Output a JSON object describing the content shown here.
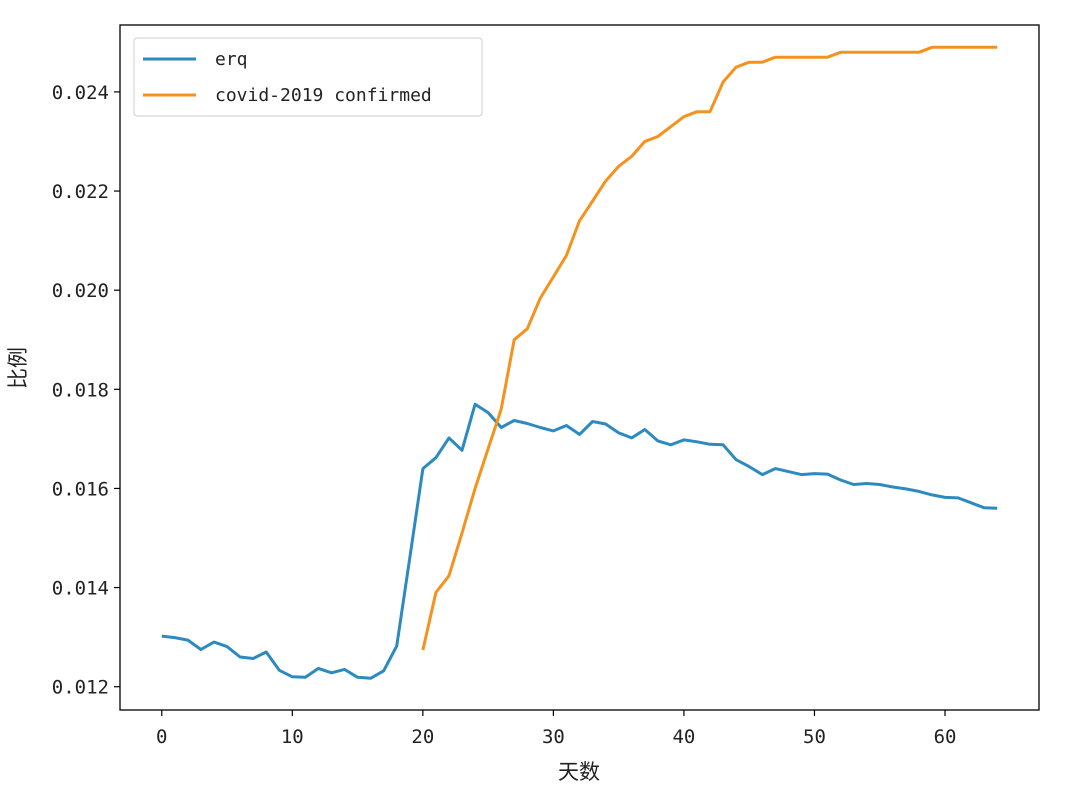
{
  "chart_data": {
    "type": "line",
    "title": "",
    "xlabel": "天数",
    "ylabel": "比例",
    "xlim": [
      -3.2,
      67.2
    ],
    "ylim": [
      0.01153,
      0.02535
    ],
    "xticks": [
      0,
      10,
      20,
      30,
      40,
      50,
      60
    ],
    "yticks": [
      0.012,
      0.014,
      0.016,
      0.018,
      0.02,
      0.022,
      0.024
    ],
    "ytick_labels": [
      "0.012",
      "0.014",
      "0.016",
      "0.018",
      "0.020",
      "0.022",
      "0.024"
    ],
    "grid": false,
    "legend_position": "top-left",
    "series": [
      {
        "name": "erq",
        "color": "#2c8ac0",
        "x": [
          0,
          1,
          2,
          3,
          4,
          5,
          6,
          7,
          8,
          9,
          10,
          11,
          12,
          13,
          14,
          15,
          16,
          17,
          18,
          19,
          20,
          21,
          22,
          23,
          24,
          25,
          26,
          27,
          28,
          29,
          30,
          31,
          32,
          33,
          34,
          35,
          36,
          37,
          38,
          39,
          40,
          41,
          42,
          43,
          44,
          45,
          46,
          47,
          48,
          49,
          50,
          51,
          52,
          53,
          54,
          55,
          56,
          57,
          58,
          59,
          60,
          61,
          62,
          63,
          64
        ],
        "y": [
          0.01302,
          0.01299,
          0.01294,
          0.01275,
          0.0129,
          0.01281,
          0.0126,
          0.01257,
          0.0127,
          0.01233,
          0.0122,
          0.01219,
          0.01237,
          0.01228,
          0.01235,
          0.01219,
          0.01217,
          0.01232,
          0.01282,
          0.0146,
          0.0164,
          0.01662,
          0.01702,
          0.01677,
          0.0177,
          0.01753,
          0.01723,
          0.01737,
          0.01731,
          0.01723,
          0.01716,
          0.01727,
          0.01709,
          0.01735,
          0.0173,
          0.01712,
          0.01702,
          0.01719,
          0.01696,
          0.01688,
          0.01698,
          0.01694,
          0.01689,
          0.01688,
          0.01658,
          0.01644,
          0.01628,
          0.0164,
          0.01634,
          0.01628,
          0.0163,
          0.01629,
          0.01617,
          0.01608,
          0.0161,
          0.01608,
          0.01603,
          0.01599,
          0.01594,
          0.01587,
          0.01582,
          0.01581,
          0.01571,
          0.01561,
          0.0156
        ]
      },
      {
        "name": "covid-2019 confirmed",
        "color": "#f5921e",
        "x": [
          20,
          21,
          22,
          23,
          24,
          25,
          26,
          27,
          28,
          29,
          30,
          31,
          32,
          33,
          34,
          35,
          36,
          37,
          38,
          39,
          40,
          41,
          42,
          43,
          44,
          45,
          46,
          47,
          48,
          49,
          50,
          51,
          52,
          53,
          54,
          55,
          56,
          57,
          58,
          59,
          60,
          61,
          62,
          63,
          64
        ],
        "y": [
          0.01274,
          0.0139,
          0.01424,
          0.0151,
          0.016,
          0.0168,
          0.0176,
          0.019,
          0.01922,
          0.01984,
          0.02027,
          0.0207,
          0.0214,
          0.0218,
          0.0222,
          0.0225,
          0.0227,
          0.023,
          0.0231,
          0.0233,
          0.0235,
          0.0236,
          0.0236,
          0.0242,
          0.0245,
          0.0246,
          0.0246,
          0.0247,
          0.0247,
          0.0247,
          0.0247,
          0.0247,
          0.0248,
          0.0248,
          0.0248,
          0.0248,
          0.0248,
          0.0248,
          0.0248,
          0.0249,
          0.0249,
          0.0249,
          0.0249,
          0.0249,
          0.0249
        ]
      }
    ]
  }
}
